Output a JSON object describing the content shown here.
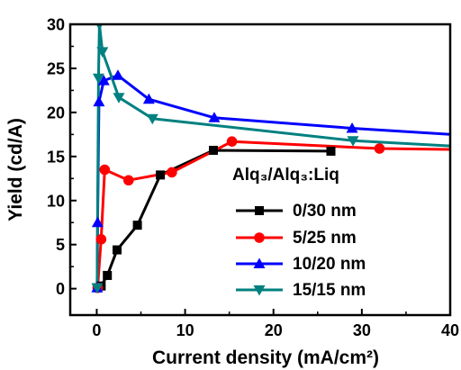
{
  "chart_data": {
    "type": "line",
    "xlabel": "Current density (mA/cm²)",
    "ylabel": "Yield (cd/A)",
    "xlim": [
      -3,
      40
    ],
    "ylim": [
      -3,
      30
    ],
    "x_ticks": [
      0,
      10,
      20,
      30,
      40
    ],
    "y_ticks": [
      0,
      5,
      10,
      15,
      20,
      25,
      30
    ],
    "legend_title": "Alq₃/Alq₃:Liq",
    "legend_position": "center-right",
    "series": [
      {
        "name": "0/30 nm",
        "color": "#000000",
        "marker": "square",
        "points": [
          [
            0.1,
            0.1
          ],
          [
            0.5,
            0.3
          ],
          [
            1.2,
            1.5
          ],
          [
            2.3,
            4.4
          ],
          [
            4.6,
            7.2
          ],
          [
            7.2,
            12.9
          ],
          [
            13.2,
            15.7
          ],
          [
            26.5,
            15.6
          ]
        ]
      },
      {
        "name": "5/25 nm",
        "color": "#ff0000",
        "marker": "circle",
        "points": [
          [
            0.1,
            0.1
          ],
          [
            0.5,
            5.6
          ],
          [
            0.9,
            13.5
          ],
          [
            3.6,
            12.3
          ],
          [
            8.5,
            13.2
          ],
          [
            15.3,
            16.7
          ],
          [
            32,
            15.9
          ],
          [
            40,
            15.8
          ]
        ]
      },
      {
        "name": "10/20 nm",
        "color": "#0000ff",
        "marker": "triangle-up",
        "points": [
          [
            0.05,
            0.1
          ],
          [
            0.1,
            7.5
          ],
          [
            0.25,
            21.2
          ],
          [
            0.8,
            23.6
          ],
          [
            2.4,
            24.2
          ],
          [
            5.9,
            21.5
          ],
          [
            13.3,
            19.4
          ],
          [
            28.9,
            18.2
          ],
          [
            40,
            17.5
          ]
        ]
      },
      {
        "name": "15/15 nm",
        "color": "#008080",
        "marker": "triangle-down",
        "points": [
          [
            0.05,
            0.1
          ],
          [
            0.2,
            23.9
          ],
          [
            0.3,
            30.0
          ],
          [
            0.65,
            26.9
          ],
          [
            2.5,
            21.7
          ],
          [
            6.3,
            19.3
          ],
          [
            29,
            16.8
          ],
          [
            40,
            16.2
          ]
        ]
      }
    ]
  }
}
